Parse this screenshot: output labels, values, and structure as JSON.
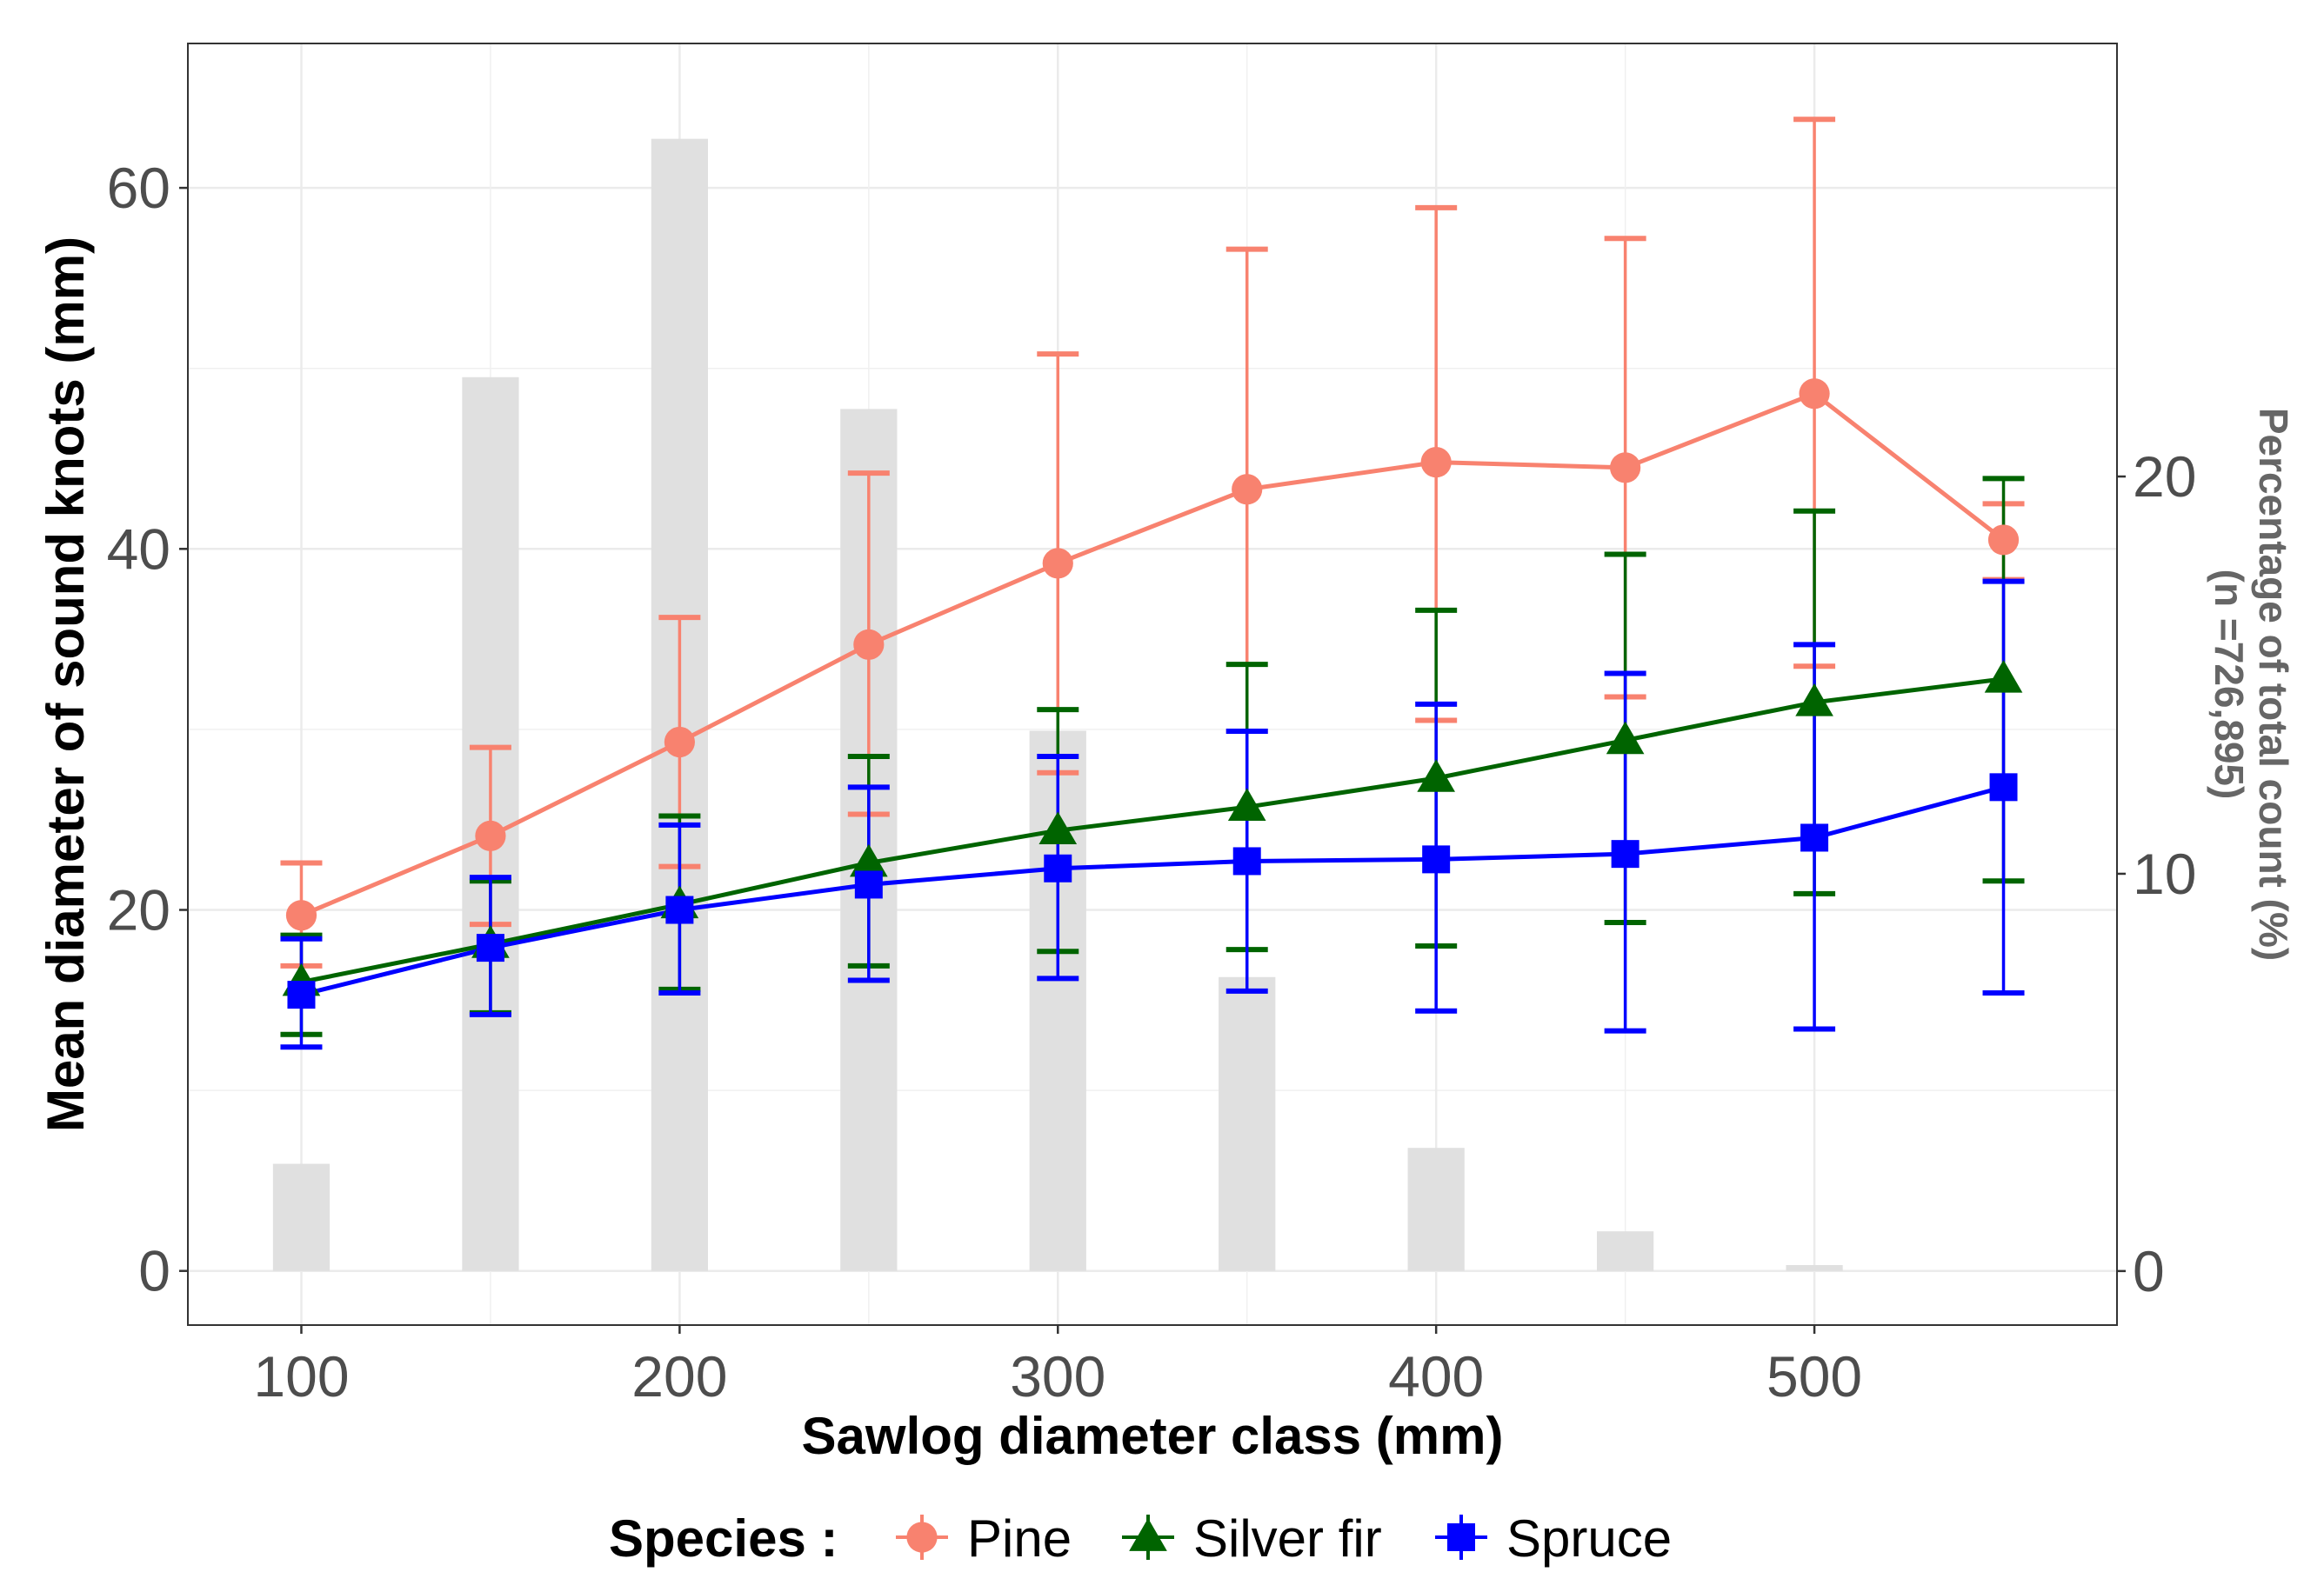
{
  "chart_data": {
    "type": "line",
    "x": [
      100,
      150,
      200,
      250,
      300,
      350,
      400,
      450,
      500,
      550
    ],
    "xlabel": "Sawlog diameter class (mm)",
    "ylabel": "Mean diameter of sound knots (mm)",
    "y2label_line1": "Percentage of total count (%)",
    "y2label_line2": "(n =726,895)",
    "xlim": [
      70,
      580
    ],
    "ylim": [
      -3,
      68
    ],
    "y2lim": [
      -1.36,
      30.9
    ],
    "xticks": [
      100,
      200,
      300,
      400,
      500
    ],
    "yticks": [
      0,
      20,
      40,
      60
    ],
    "y2ticks": [
      0,
      10,
      20
    ],
    "grid": true,
    "bars": {
      "name": "Percentage of total count",
      "x": [
        100,
        150,
        200,
        250,
        300,
        350,
        400,
        450,
        500
      ],
      "values": [
        2.7,
        22.5,
        28.5,
        21.7,
        13.6,
        7.4,
        3.1,
        1.0,
        0.15
      ],
      "color": "#e0e0e0"
    },
    "series": [
      {
        "name": "Pine",
        "color": "#f8826f",
        "marker": "circle",
        "values": [
          19.7,
          24.1,
          29.3,
          34.7,
          39.2,
          43.3,
          44.8,
          44.5,
          48.6,
          40.5
        ],
        "err_low": [
          16.9,
          19.2,
          22.4,
          25.3,
          27.6,
          29.9,
          30.5,
          31.8,
          33.5,
          38.3
        ],
        "err_high": [
          22.6,
          29.0,
          36.2,
          44.2,
          50.8,
          56.6,
          58.9,
          57.2,
          63.8,
          42.5
        ]
      },
      {
        "name": "Silver fir",
        "color": "#006400",
        "marker": "triangle",
        "values": [
          16.0,
          18.1,
          20.3,
          22.6,
          24.4,
          25.7,
          27.3,
          29.4,
          31.5,
          32.8
        ],
        "err_low": [
          13.1,
          14.3,
          15.6,
          16.9,
          17.7,
          17.8,
          18.0,
          19.3,
          20.9,
          21.6
        ],
        "err_high": [
          18.6,
          21.6,
          25.2,
          28.5,
          31.1,
          33.6,
          36.6,
          39.7,
          42.1,
          43.9
        ]
      },
      {
        "name": "Spruce",
        "color": "#0000ff",
        "marker": "square",
        "values": [
          15.3,
          17.9,
          20.0,
          21.4,
          22.3,
          22.7,
          22.8,
          23.1,
          24.0,
          26.8
        ],
        "err_low": [
          12.4,
          14.2,
          15.4,
          16.1,
          16.2,
          15.5,
          14.4,
          13.3,
          13.4,
          15.4
        ],
        "err_high": [
          18.4,
          21.8,
          24.7,
          26.8,
          28.5,
          29.9,
          31.4,
          33.1,
          34.7,
          38.2
        ]
      }
    ],
    "legend": {
      "title": "Species :",
      "position": "bottom"
    }
  }
}
